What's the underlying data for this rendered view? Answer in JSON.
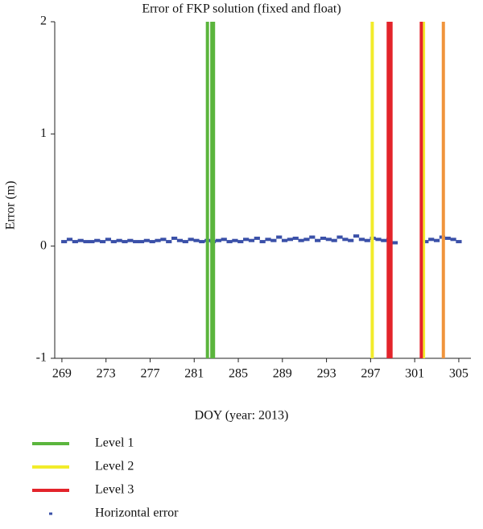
{
  "chart_data": {
    "type": "scatter",
    "title": "Error of FKP solution (fixed and float)",
    "x_label": "DOY (year: 2013)",
    "y_label": "Error (m)",
    "xlim": [
      268.35,
      306.1
    ],
    "ylim": [
      -1,
      2
    ],
    "xticks": [
      269,
      273,
      277,
      281,
      285,
      289,
      293,
      297,
      301,
      305
    ],
    "yticks": [
      -1,
      0,
      1,
      2
    ],
    "vlines": [
      {
        "name": "Level 1",
        "color": "#5bb53d",
        "x": [
          282.2,
          282.6,
          282.75
        ]
      },
      {
        "name": "Level 2",
        "color": "#f2ec2a",
        "x": [
          297.15,
          301.8
        ]
      },
      {
        "name": "Level 3",
        "color": "#e3242b",
        "x": [
          298.6,
          298.85,
          301.6
        ]
      },
      {
        "color": "#f0943c",
        "x": [
          303.6
        ]
      }
    ],
    "series": [
      {
        "name": "Horizontal error",
        "color": "#3a50a8",
        "x": [
          269.2,
          269.7,
          270.2,
          270.7,
          271.2,
          271.7,
          272.2,
          272.7,
          273.2,
          273.7,
          274.2,
          274.7,
          275.2,
          275.7,
          276.2,
          276.7,
          277.2,
          277.7,
          278.2,
          278.7,
          279.2,
          279.7,
          280.2,
          280.7,
          281.2,
          281.7,
          282.2,
          282.7,
          283.2,
          283.7,
          284.2,
          284.7,
          285.2,
          285.7,
          286.2,
          286.7,
          287.2,
          287.7,
          288.2,
          288.7,
          289.2,
          289.7,
          290.2,
          290.7,
          291.2,
          291.7,
          292.2,
          292.7,
          293.2,
          293.7,
          294.2,
          294.7,
          295.2,
          295.7,
          296.2,
          296.7,
          297.2,
          297.7,
          298.2,
          298.7,
          299.2,
          302.0,
          302.5,
          303.0,
          303.5,
          304.0,
          304.5,
          305.0
        ],
        "values": [
          0.04,
          0.06,
          0.04,
          0.05,
          0.04,
          0.04,
          0.05,
          0.04,
          0.06,
          0.04,
          0.05,
          0.04,
          0.05,
          0.04,
          0.04,
          0.05,
          0.04,
          0.05,
          0.06,
          0.04,
          0.07,
          0.05,
          0.04,
          0.06,
          0.05,
          0.04,
          0.05,
          0.04,
          0.05,
          0.06,
          0.04,
          0.05,
          0.04,
          0.06,
          0.05,
          0.07,
          0.04,
          0.06,
          0.05,
          0.08,
          0.05,
          0.06,
          0.07,
          0.05,
          0.06,
          0.08,
          0.05,
          0.07,
          0.06,
          0.05,
          0.08,
          0.06,
          0.05,
          0.09,
          0.06,
          0.05,
          0.07,
          0.06,
          0.05,
          0.06,
          0.03,
          0.04,
          0.06,
          0.05,
          0.08,
          0.07,
          0.06,
          0.04
        ]
      }
    ]
  }
}
